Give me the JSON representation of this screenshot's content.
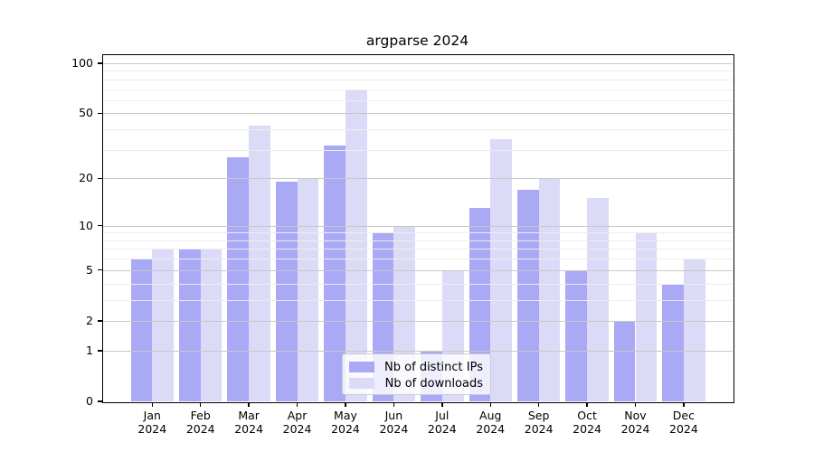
{
  "title": "argparse 2024",
  "legend": {
    "items": [
      {
        "label": "Nb of distinct IPs",
        "color": "#a9a9f5"
      },
      {
        "label": "Nb of downloads",
        "color": "#dbdbf8"
      }
    ]
  },
  "x_axis": {
    "months": [
      "Jan",
      "Feb",
      "Mar",
      "Apr",
      "May",
      "Jun",
      "Jul",
      "Aug",
      "Sep",
      "Oct",
      "Nov",
      "Dec"
    ],
    "year": "2024"
  },
  "y_axis": {
    "major_ticks": [
      0,
      1,
      2,
      5,
      10,
      20,
      50,
      100
    ],
    "minor_gridlines": [
      3,
      4,
      6,
      7,
      8,
      9,
      30,
      40,
      60,
      70,
      80,
      90
    ]
  },
  "chart_data": {
    "type": "bar",
    "title": "argparse 2024",
    "categories": [
      "Jan 2024",
      "Feb 2024",
      "Mar 2024",
      "Apr 2024",
      "May 2024",
      "Jun 2024",
      "Jul 2024",
      "Aug 2024",
      "Sep 2024",
      "Oct 2024",
      "Nov 2024",
      "Dec 2024"
    ],
    "series": [
      {
        "name": "Nb of distinct IPs",
        "color": "#a9a9f5",
        "values": [
          6,
          7,
          27,
          19,
          32,
          9,
          1,
          13,
          17,
          5,
          2,
          4
        ]
      },
      {
        "name": "Nb of downloads",
        "color": "#dbdbf8",
        "values": [
          7,
          7,
          42,
          20,
          70,
          10,
          5,
          35,
          20,
          15,
          9,
          6
        ]
      }
    ],
    "xlabel": "",
    "ylabel": "",
    "y_scale": "log10(1+v)",
    "ylim": [
      0,
      100
    ],
    "yticks": [
      0,
      1,
      2,
      5,
      10,
      20,
      50,
      100
    ],
    "grid": true,
    "grid_above_bars": true,
    "legend_position": "lower center inside plot"
  }
}
